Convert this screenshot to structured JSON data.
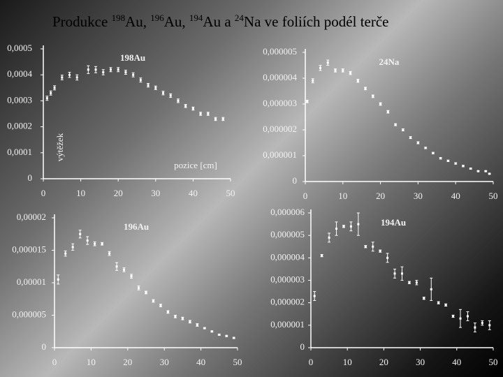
{
  "title_parts": [
    "Produkce ",
    "198",
    "Au, ",
    "196",
    "Au, ",
    "194",
    "Au a ",
    "24",
    "Na ve foliích podél terče"
  ],
  "chart_data": [
    {
      "type": "scatter",
      "title": "198Au",
      "xlabel": "pozice [cm]",
      "ylabel": "výtěžek",
      "color": "#ffffff",
      "x": [
        1,
        2,
        3,
        5,
        7,
        9,
        12,
        14,
        16,
        18,
        20,
        22,
        24,
        26,
        28,
        30,
        32,
        34,
        36,
        38,
        40,
        42,
        44,
        46,
        48
      ],
      "values": [
        0.00031,
        0.00033,
        0.00035,
        0.00039,
        0.0004,
        0.00039,
        0.00042,
        0.00042,
        0.00041,
        0.00042,
        0.00042,
        0.00041,
        0.0004,
        0.00038,
        0.00036,
        0.00035,
        0.00033,
        0.00032,
        0.0003,
        0.00028,
        0.00027,
        0.00025,
        0.00025,
        0.00023,
        0.00023
      ],
      "errors": [
        8e-06,
        8e-06,
        8e-06,
        9e-06,
        1e-05,
        1e-05,
        1.5e-05,
        1.2e-05,
        1e-05,
        8e-06,
        8e-06,
        8e-06,
        8e-06,
        8e-06,
        7e-06,
        7e-06,
        7e-06,
        7e-06,
        7e-06,
        6e-06,
        6e-06,
        6e-06,
        6e-06,
        6e-06,
        6e-06
      ],
      "xlim": [
        0,
        50
      ],
      "ylim": [
        0,
        0.0005
      ],
      "xticks": [
        0,
        10,
        20,
        30,
        40,
        50
      ],
      "yticks": [
        0,
        {
          "value": 0.0001,
          "label": "0,0001"
        },
        {
          "value": 0.0002,
          "label": "0,0002"
        },
        {
          "value": 0.0003,
          "label": "0,0003"
        },
        {
          "value": 0.0004,
          "label": "0,0004"
        },
        {
          "value": 0.0005,
          "label": "0,0005"
        }
      ]
    },
    {
      "type": "scatter",
      "title": "24Na",
      "color": "#ffffff",
      "x": [
        0.5,
        2,
        4,
        6,
        8,
        10,
        12,
        14,
        16,
        18,
        20,
        22,
        24,
        26,
        28,
        30,
        32,
        34,
        36,
        38,
        40,
        42,
        44,
        46,
        48,
        49
      ],
      "values": [
        3.1e-06,
        3.9e-06,
        4.4e-06,
        4.6e-06,
        4.3e-06,
        4.3e-06,
        4.2e-06,
        3.9e-06,
        3.6e-06,
        3.3e-06,
        3e-06,
        2.7e-06,
        2.2e-06,
        2e-06,
        1.7e-06,
        1.5e-06,
        1.3e-06,
        1.1e-06,
        9e-07,
        8e-07,
        7e-07,
        6e-07,
        5e-07,
        4e-07,
        4e-07,
        3e-07
      ],
      "errors": [
        5e-08,
        8e-08,
        1e-07,
        1e-07,
        6e-08,
        6e-08,
        6e-08,
        6e-08,
        5e-08,
        5e-08,
        5e-08,
        5e-08,
        4e-08,
        4e-08,
        4e-08,
        4e-08,
        3e-08,
        3e-08,
        3e-08,
        3e-08,
        3e-08,
        3e-08,
        2e-08,
        2e-08,
        2e-08,
        2e-08
      ],
      "xlim": [
        0,
        50
      ],
      "ylim": [
        0,
        5e-06
      ],
      "xticks": [
        0,
        10,
        20,
        30,
        40,
        50
      ],
      "yticks": [
        0,
        {
          "value": 1e-06,
          "label": "0,000001"
        },
        {
          "value": 2e-06,
          "label": "0,000002"
        },
        {
          "value": 3e-06,
          "label": "0,000003"
        },
        {
          "value": 4e-06,
          "label": "0,000004"
        },
        {
          "value": 5e-06,
          "label": "0,000005"
        }
      ]
    },
    {
      "type": "scatter",
      "title": "196Au",
      "color": "#ffffff",
      "x": [
        1,
        3,
        5,
        7,
        9,
        11,
        13,
        15,
        17,
        19,
        21,
        23,
        25,
        27,
        29,
        31,
        33,
        35,
        37,
        39,
        41,
        43,
        45,
        47,
        49
      ],
      "values": [
        1.05e-05,
        1.45e-05,
        1.55e-05,
        1.75e-05,
        1.65e-05,
        1.6e-05,
        1.6e-05,
        1.45e-05,
        1.25e-05,
        1.2e-05,
        1.1e-05,
        9.2e-06,
        8.5e-06,
        7.2e-06,
        6.5e-06,
        5.5e-06,
        4.8e-06,
        4.5e-06,
        4e-06,
        3.5e-06,
        3e-06,
        2.5e-06,
        2e-06,
        1.8e-06,
        1.5e-06
      ],
      "errors": [
        7e-07,
        4e-07,
        5e-07,
        6e-07,
        6e-07,
        3e-07,
        2e-07,
        3e-07,
        6e-07,
        3e-07,
        3e-07,
        3e-07,
        2e-07,
        2e-07,
        2e-07,
        2e-07,
        2e-07,
        2e-07,
        2e-07,
        2e-07,
        1e-07,
        1e-07,
        1e-07,
        1e-07,
        1e-07
      ],
      "xlim": [
        0,
        50
      ],
      "ylim": [
        0,
        2e-05
      ],
      "xticks": [
        0,
        10,
        20,
        30,
        40,
        50
      ],
      "yticks": [
        0,
        {
          "value": 5e-06,
          "label": "0,000005"
        },
        {
          "value": 1e-05,
          "label": "0,00001"
        },
        {
          "value": 1.5e-05,
          "label": "0,000015"
        },
        {
          "value": 2e-05,
          "label": "0,00002"
        }
      ]
    },
    {
      "type": "scatter",
      "title": "194Au",
      "color": "#ffffff",
      "x": [
        1,
        3,
        5,
        7,
        9,
        11,
        13,
        15,
        17,
        19,
        21,
        23,
        25,
        27,
        29,
        31,
        33,
        35,
        37,
        39,
        41,
        43,
        45,
        47,
        49
      ],
      "values": [
        2.3e-06,
        4.1e-06,
        4.9e-06,
        5.3e-06,
        5.4e-06,
        5.4e-06,
        5.5e-06,
        4.5e-06,
        4.5e-06,
        4.3e-06,
        4e-06,
        3.3e-06,
        3.3e-06,
        2.9e-06,
        2.9e-06,
        2.2e-06,
        2.6e-06,
        2e-06,
        1.9e-06,
        1.4e-06,
        1.3e-06,
        1.4e-06,
        9e-07,
        1.1e-06,
        1e-06
      ],
      "errors": [
        2e-07,
        5e-08,
        2e-07,
        3e-07,
        5e-08,
        2e-07,
        5e-07,
        5e-08,
        2e-07,
        5e-08,
        2e-07,
        2e-07,
        3e-07,
        5e-08,
        1e-07,
        5e-08,
        5e-07,
        5e-08,
        5e-08,
        5e-08,
        4e-07,
        2e-07,
        2e-07,
        1e-07,
        2e-07
      ],
      "xlim": [
        0,
        50
      ],
      "ylim": [
        0,
        6e-06
      ],
      "xticks": [
        0,
        10,
        20,
        30,
        40,
        50
      ],
      "yticks": [
        0,
        {
          "value": 1e-06,
          "label": "0,000001"
        },
        {
          "value": 2e-06,
          "label": "0,000002"
        },
        {
          "value": 3e-06,
          "label": "0,000003"
        },
        {
          "value": 4e-06,
          "label": "0,000004"
        },
        {
          "value": 5e-06,
          "label": "0,000005"
        },
        {
          "value": 6e-06,
          "label": "0,000006"
        }
      ]
    }
  ]
}
